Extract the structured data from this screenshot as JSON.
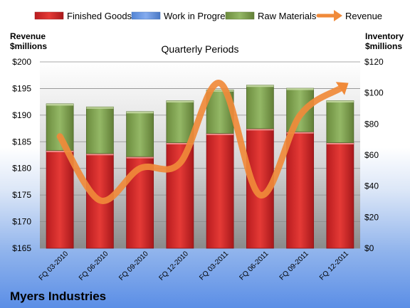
{
  "chart_data": {
    "type": "bar",
    "stacked": true,
    "title": "Quarterly Periods",
    "company": "Myers Industries",
    "categories": [
      "FQ 03-2010",
      "FQ 06-2010",
      "FQ 09-2010",
      "FQ 12-2010",
      "FQ 03-2011",
      "FQ 06-2011",
      "FQ 09-2011",
      "FQ 12-2011"
    ],
    "left_axis": {
      "label_line1": "Revenue",
      "label_line2": "$millions",
      "min": 165,
      "max": 200,
      "step": 5,
      "prefix": "$"
    },
    "right_axis": {
      "label_line1": "Inventory",
      "label_line2": "$millions",
      "min": 0,
      "max": 120,
      "step": 20,
      "prefix": "$"
    },
    "series": [
      {
        "name": "Finished Goods",
        "axis": "right",
        "color": "#e0262b",
        "values": [
          63,
          61,
          59,
          68,
          74,
          77,
          75,
          68
        ]
      },
      {
        "name": "Work in Progress",
        "axis": "right",
        "color": "#6f9ee8",
        "values": [
          0,
          0,
          0,
          0,
          0,
          0,
          0,
          0
        ]
      },
      {
        "name": "Raw Materials",
        "axis": "right",
        "color": "#8db05a",
        "values": [
          30,
          30,
          29,
          27,
          28,
          28,
          28,
          27
        ]
      },
      {
        "name": "Revenue",
        "axis": "left",
        "type": "line",
        "color": "#f08a3a",
        "values": [
          186,
          174,
          180,
          181,
          196,
          175,
          190,
          195
        ]
      }
    ],
    "grid": true,
    "legend_position": "top"
  }
}
